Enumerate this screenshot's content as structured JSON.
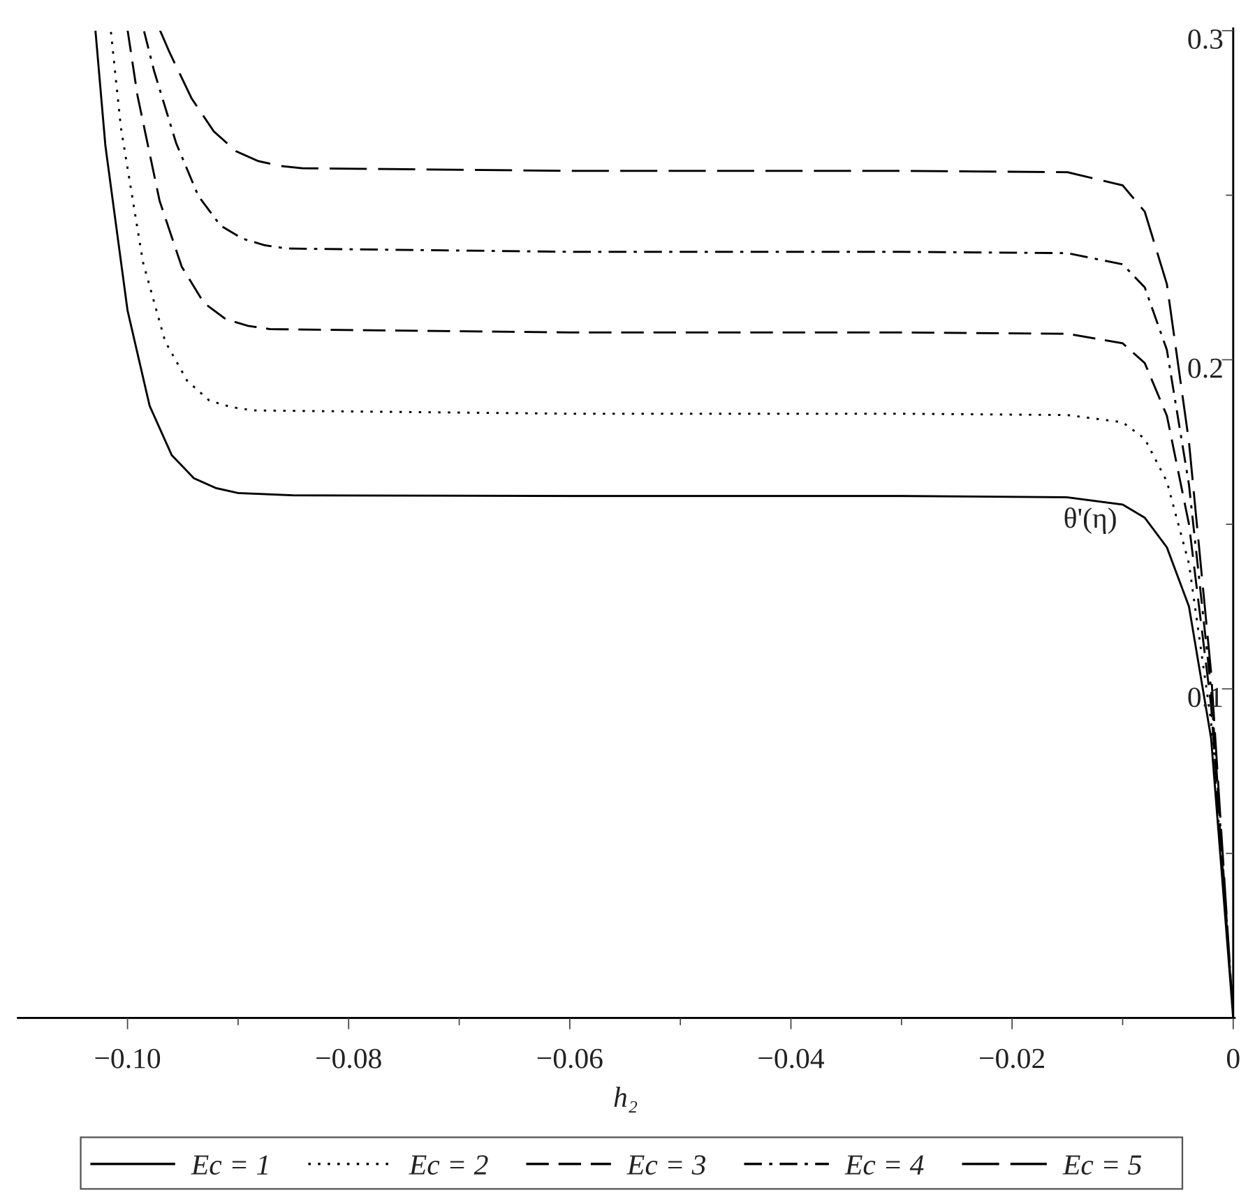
{
  "chart_data": {
    "type": "line",
    "x_label": "h₂",
    "annotations": [
      {
        "text": "θ'(η)",
        "x": -0.0105,
        "y": 0.149
      }
    ],
    "xlim": [
      -0.11,
      0
    ],
    "ylim": [
      0,
      0.3
    ],
    "xticks": [
      {
        "value": -0.1,
        "label": "−0.10"
      },
      {
        "value": -0.08,
        "label": "−0.08"
      },
      {
        "value": -0.06,
        "label": "−0.06"
      },
      {
        "value": -0.04,
        "label": "−0.04"
      },
      {
        "value": -0.02,
        "label": "−0.02"
      },
      0
    ],
    "xminor_ticks": [
      -0.09,
      -0.07,
      -0.05,
      -0.03,
      -0.01
    ],
    "yticks": [
      0.1,
      0.2,
      0.3
    ],
    "yminor_ticks": [
      0.05,
      0.15,
      0.25
    ],
    "legend": "bottom",
    "series": [
      {
        "name": "Ec = 1",
        "color": "#000000",
        "dash": "solid",
        "x": [
          -0.1029,
          -0.102,
          -0.1,
          -0.098,
          -0.096,
          -0.094,
          -0.092,
          -0.09,
          -0.085,
          -0.06,
          -0.03,
          -0.015,
          -0.01,
          -0.008,
          -0.006,
          -0.004,
          -0.002,
          0
        ],
        "values": [
          0.3,
          0.265,
          0.215,
          0.186,
          0.171,
          0.164,
          0.161,
          0.1595,
          0.1588,
          0.1586,
          0.1586,
          0.1582,
          0.156,
          0.152,
          0.143,
          0.125,
          0.085,
          0
        ]
      },
      {
        "name": "Ec = 2",
        "color": "#000000",
        "dash": "dotted",
        "x": [
          -0.1015,
          -0.1006,
          -0.0986,
          -0.0966,
          -0.0946,
          -0.0926,
          -0.0906,
          -0.0886,
          -0.06,
          -0.03,
          -0.015,
          -0.01,
          -0.008,
          -0.006,
          -0.004,
          -0.002,
          0
        ],
        "values": [
          0.2996,
          0.2706,
          0.2296,
          0.2056,
          0.1936,
          0.1876,
          0.1856,
          0.1846,
          0.1836,
          0.1836,
          0.1832,
          0.181,
          0.176,
          0.163,
          0.138,
          0.09,
          0
        ]
      },
      {
        "name": "Ec = 3",
        "color": "#000000",
        "dash": "dashed",
        "x": [
          -0.1,
          -0.0991,
          -0.0971,
          -0.0951,
          -0.0931,
          -0.0911,
          -0.0891,
          -0.0871,
          -0.06,
          -0.03,
          -0.015,
          -0.01,
          -0.008,
          -0.006,
          -0.004,
          -0.002,
          0
        ],
        "values": [
          0.3003,
          0.2803,
          0.2483,
          0.2283,
          0.2173,
          0.2123,
          0.2103,
          0.2093,
          0.2083,
          0.2083,
          0.2079,
          0.205,
          0.199,
          0.183,
          0.15,
          0.095,
          0
        ]
      },
      {
        "name": "Ec = 4",
        "color": "#000000",
        "dash": "dashdot",
        "x": [
          -0.0985,
          -0.0976,
          -0.0956,
          -0.0936,
          -0.0916,
          -0.0896,
          -0.0876,
          -0.0856,
          -0.06,
          -0.03,
          -0.015,
          -0.01,
          -0.008,
          -0.006,
          -0.004,
          -0.002,
          0
        ],
        "values": [
          0.2998,
          0.2878,
          0.2658,
          0.2498,
          0.2408,
          0.2368,
          0.2348,
          0.2338,
          0.2328,
          0.2328,
          0.2324,
          0.229,
          0.222,
          0.203,
          0.162,
          0.1,
          0
        ]
      },
      {
        "name": "Ec = 5",
        "color": "#000000",
        "dash": "longdash",
        "x": [
          -0.0971,
          -0.0962,
          -0.0942,
          -0.0922,
          -0.0902,
          -0.0882,
          -0.0862,
          -0.0842,
          -0.06,
          -0.03,
          -0.015,
          -0.01,
          -0.008,
          -0.006,
          -0.004,
          -0.002,
          0
        ],
        "values": [
          0.3004,
          0.2934,
          0.2794,
          0.2694,
          0.2634,
          0.2604,
          0.2589,
          0.2582,
          0.2574,
          0.2574,
          0.257,
          0.253,
          0.245,
          0.223,
          0.175,
          0.105,
          0
        ]
      }
    ]
  }
}
